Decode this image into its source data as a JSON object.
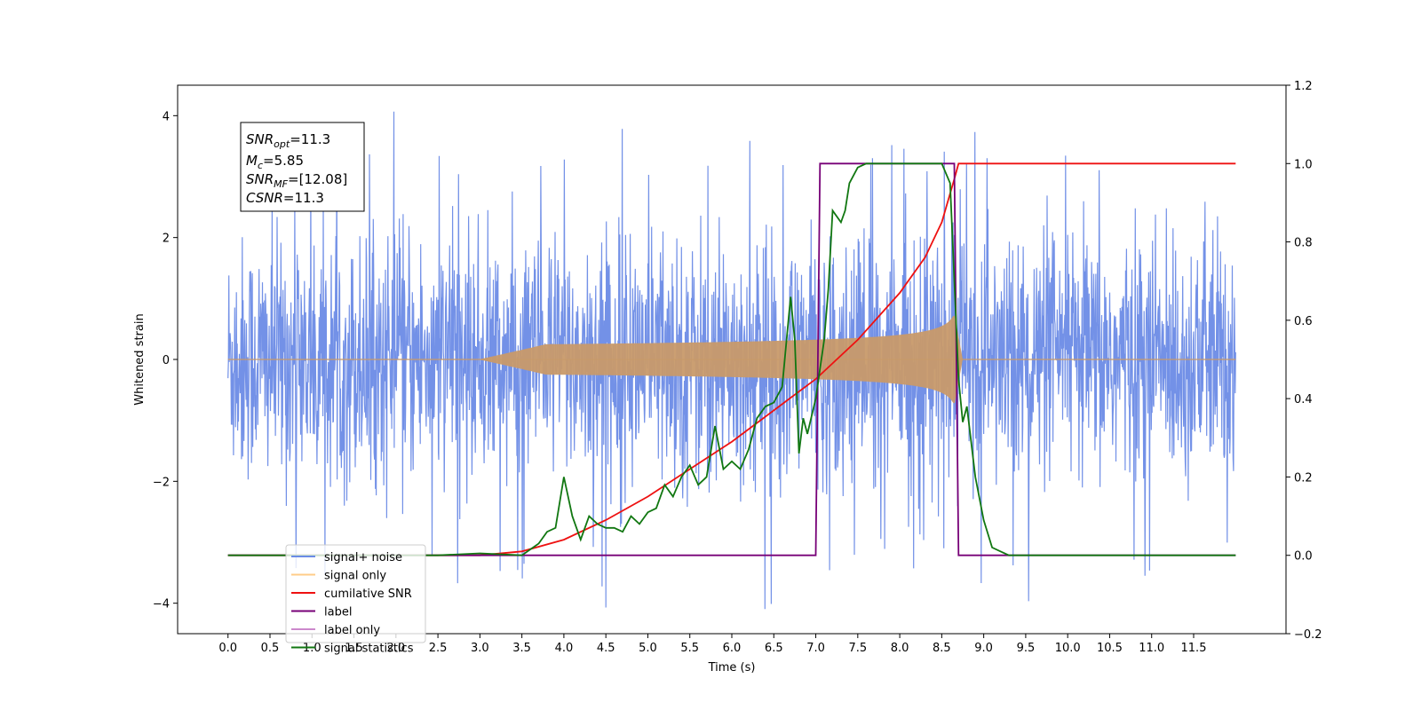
{
  "chart_data": {
    "type": "line",
    "title": "",
    "xlabel": "Time (s)",
    "ylabel": "Whitened strain",
    "ylabel_right": "",
    "xlim": [
      -0.6,
      12.6
    ],
    "ylim": [
      -4.5,
      4.5
    ],
    "ylim_right": [
      -0.2,
      1.2
    ],
    "x_ticks": [
      0.0,
      0.5,
      1.0,
      1.5,
      2.0,
      2.5,
      3.0,
      3.5,
      4.0,
      4.5,
      5.0,
      5.5,
      6.0,
      6.5,
      7.0,
      7.5,
      8.0,
      8.5,
      9.0,
      9.5,
      10.0,
      10.5,
      11.0,
      11.5
    ],
    "x_tick_labels": [
      "0.0",
      "0.5",
      "1.0",
      "1.5",
      "2.0",
      "2.5",
      "3.0",
      "3.5",
      "4.0",
      "4.5",
      "5.0",
      "5.5",
      "6.0",
      "6.5",
      "7.0",
      "7.5",
      "8.0",
      "8.5",
      "9.0",
      "9.5",
      "10.0",
      "10.5",
      "11.0",
      "11.5"
    ],
    "y_ticks": [
      4,
      2,
      0,
      -2,
      -4
    ],
    "y_tick_labels": [
      "4",
      "2",
      "0",
      "−2",
      "−4"
    ],
    "y_ticks_right": [
      1.2,
      1.0,
      0.8,
      0.6,
      0.4,
      0.2,
      0.0,
      -0.2
    ],
    "y_tick_labels_right": [
      "1.2",
      "1.0",
      "0.8",
      "0.6",
      "0.4",
      "0.2",
      "0.0",
      "−0.2"
    ],
    "grid": false,
    "legend_position": "lower-left",
    "legend": [
      {
        "label": "signal+ noise",
        "color": "#6b8be6"
      },
      {
        "label": "signal only",
        "color": "#ffcc88"
      },
      {
        "label": "cumilative SNR",
        "color": "#ee1111"
      },
      {
        "label": "label",
        "color": "#770077"
      },
      {
        "label": "label only",
        "color": "#cc88cc"
      },
      {
        "label": "signal statistics",
        "color": "#117711"
      }
    ],
    "annotation": {
      "lines": [
        {
          "label": "SNR",
          "subscript": "opt",
          "value": "=11.3"
        },
        {
          "label": "M",
          "subscript": "c",
          "value": "=5.85"
        },
        {
          "label": "SNR",
          "subscript": "MF",
          "value": "=[12.08]"
        },
        {
          "label": "CSNR",
          "subscript": "",
          "value": "=11.3"
        }
      ]
    },
    "series": [
      {
        "name": "signal+ noise",
        "axis": "left",
        "color": "#6b8be6",
        "description_stats": {
          "x_start": 0.0,
          "x_end": 12.0,
          "typical_amplitude": 1.8,
          "max": 4.1,
          "min": -4.1
        }
      },
      {
        "name": "signal only",
        "axis": "left",
        "color": "#c89a6a",
        "chirp": {
          "x_start": 3.0,
          "x_merge": 8.65,
          "x_end_ringdown": 8.75,
          "peak_amplitude": 0.75
        }
      },
      {
        "name": "cumilative SNR",
        "axis": "right",
        "color": "#ee1111",
        "x": [
          0.0,
          3.0,
          3.5,
          4.0,
          4.5,
          5.0,
          5.5,
          6.0,
          6.5,
          7.0,
          7.5,
          8.0,
          8.3,
          8.5,
          8.65,
          8.7,
          9.0,
          10.0,
          11.0,
          12.0
        ],
        "y": [
          0.0,
          0.0,
          0.01,
          0.04,
          0.09,
          0.15,
          0.22,
          0.29,
          0.37,
          0.45,
          0.55,
          0.67,
          0.76,
          0.85,
          0.96,
          1.0,
          1.0,
          1.0,
          1.0,
          1.0
        ]
      },
      {
        "name": "label",
        "axis": "right",
        "color": "#770077",
        "x": [
          0.0,
          7.0,
          7.05,
          8.65,
          8.7,
          12.0
        ],
        "y": [
          0.0,
          0.0,
          1.0,
          1.0,
          0.0,
          0.0
        ]
      },
      {
        "name": "signal statistics",
        "axis": "right",
        "color": "#117711",
        "x": [
          0.0,
          2.5,
          3.0,
          3.5,
          3.7,
          3.8,
          3.9,
          4.0,
          4.1,
          4.2,
          4.3,
          4.4,
          4.5,
          4.6,
          4.7,
          4.8,
          4.9,
          5.0,
          5.1,
          5.2,
          5.3,
          5.4,
          5.5,
          5.6,
          5.7,
          5.8,
          5.9,
          6.0,
          6.1,
          6.2,
          6.3,
          6.4,
          6.5,
          6.6,
          6.7,
          6.75,
          6.8,
          6.85,
          6.9,
          7.0,
          7.1,
          7.15,
          7.2,
          7.3,
          7.35,
          7.4,
          7.5,
          7.6,
          7.8,
          8.0,
          8.5,
          8.6,
          8.7,
          8.75,
          8.8,
          8.9,
          9.0,
          9.1,
          9.2,
          9.3,
          10.0,
          12.0
        ],
        "y": [
          0.0,
          0.0,
          0.005,
          0.0,
          0.03,
          0.06,
          0.07,
          0.2,
          0.1,
          0.04,
          0.1,
          0.08,
          0.07,
          0.07,
          0.06,
          0.1,
          0.08,
          0.11,
          0.12,
          0.18,
          0.15,
          0.2,
          0.23,
          0.18,
          0.2,
          0.33,
          0.22,
          0.24,
          0.22,
          0.27,
          0.35,
          0.38,
          0.39,
          0.43,
          0.66,
          0.55,
          0.26,
          0.35,
          0.31,
          0.4,
          0.55,
          0.68,
          0.88,
          0.85,
          0.88,
          0.95,
          0.99,
          1.0,
          1.0,
          1.0,
          1.0,
          0.95,
          0.45,
          0.34,
          0.38,
          0.2,
          0.09,
          0.02,
          0.01,
          0.0,
          0.0,
          0.0
        ]
      }
    ]
  }
}
